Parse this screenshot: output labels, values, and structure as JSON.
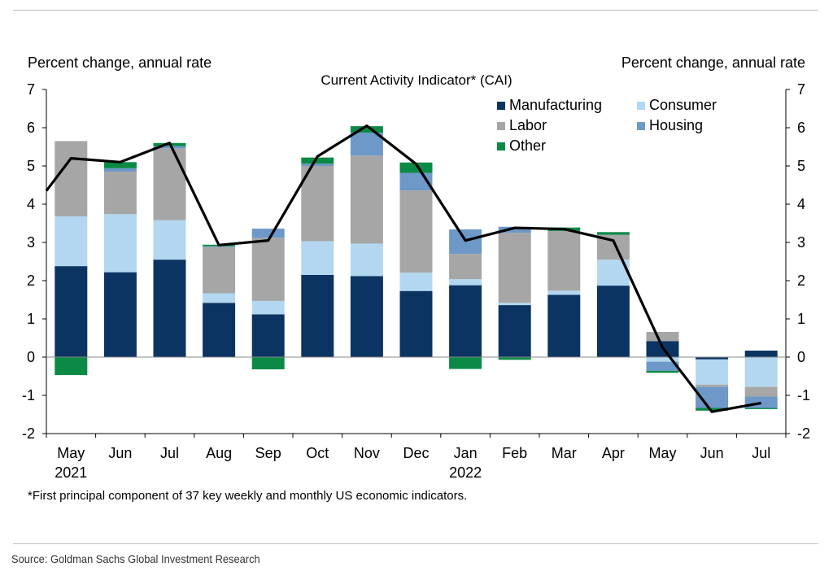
{
  "header": {
    "left_axis_title": "Percent change, annual rate",
    "right_axis_title": "Percent change, annual rate"
  },
  "footnote": "*First principal component of 37 key weekly and monthly US economic indicators.",
  "source": "Source: Goldman Sachs Global Investment Research",
  "colors": {
    "Manufacturing": "#0b3463",
    "Consumer": "#b3d7f0",
    "Labor": "#a6a6a6",
    "Housing": "#6d98c8",
    "Other": "#0a8a45",
    "line": "#000000"
  },
  "legend": {
    "manufacturing": "Manufacturing",
    "consumer": "Consumer",
    "labor": "Labor",
    "housing": "Housing",
    "other": "Other"
  },
  "chart_data": {
    "type": "bar",
    "stacked": true,
    "title": "Current Activity Indicator* (CAI)",
    "xlabel": "",
    "ylabel": "Percent change, annual rate",
    "ylim": [
      -2,
      7
    ],
    "yticks": [
      -2,
      -1,
      0,
      1,
      2,
      3,
      4,
      5,
      6,
      7
    ],
    "categories": [
      "May",
      "Jun",
      "Jul",
      "Aug",
      "Sep",
      "Oct",
      "Nov",
      "Dec",
      "Jan",
      "Feb",
      "Mar",
      "Apr",
      "May",
      "Jun",
      "Jul"
    ],
    "year_labels": [
      {
        "index": 0,
        "label": "2021"
      },
      {
        "index": 8,
        "label": "2022"
      }
    ],
    "series": [
      {
        "name": "Manufacturing",
        "values": [
          2.38,
          2.22,
          2.55,
          1.42,
          1.12,
          2.15,
          2.12,
          1.73,
          1.88,
          1.36,
          1.63,
          1.87,
          0.42,
          -0.06,
          0.17
        ]
      },
      {
        "name": "Consumer",
        "values": [
          1.3,
          1.52,
          1.03,
          0.25,
          0.35,
          0.88,
          0.85,
          0.48,
          0.16,
          0.06,
          0.11,
          0.68,
          -0.12,
          -0.66,
          -0.78
        ]
      },
      {
        "name": "Labor",
        "values": [
          1.97,
          1.11,
          1.88,
          1.21,
          1.65,
          1.97,
          2.3,
          2.15,
          0.66,
          1.83,
          1.56,
          0.65,
          0.24,
          -0.06,
          -0.25
        ]
      },
      {
        "name": "Housing",
        "values": [
          0,
          0.09,
          0.06,
          0.02,
          0.24,
          0.06,
          0.6,
          0.46,
          0.64,
          0.16,
          0,
          0,
          -0.24,
          -0.55,
          -0.3
        ]
      },
      {
        "name": "Other",
        "values": [
          -0.47,
          0.16,
          0.08,
          0.04,
          -0.32,
          0.16,
          0.17,
          0.27,
          -0.31,
          -0.07,
          0.09,
          0.07,
          -0.05,
          -0.07,
          -0.03
        ]
      }
    ],
    "line": {
      "name": "CAI",
      "start_value": 4.35,
      "values": [
        5.2,
        5.1,
        5.6,
        2.93,
        3.05,
        5.25,
        6.05,
        5.05,
        3.05,
        3.38,
        3.35,
        3.05,
        0.25,
        -1.43,
        -1.2
      ]
    }
  }
}
